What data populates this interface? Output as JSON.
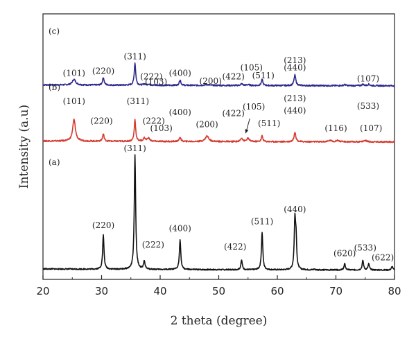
{
  "chart_data": {
    "type": "line",
    "xlabel": "2 theta (degree)",
    "ylabel": "Intensity (a.u)",
    "xlim": [
      20,
      80
    ],
    "x_ticks": [
      20,
      30,
      40,
      50,
      60,
      70,
      80
    ],
    "grid": false,
    "legend": "none",
    "series": [
      {
        "panel": "(c)",
        "color": "#2e2a8f",
        "baseline": 0.1,
        "peaks": [
          {
            "x": 25.3,
            "h": 0.2,
            "w": 0.35
          },
          {
            "x": 30.3,
            "h": 0.28,
            "w": 0.16
          },
          {
            "x": 35.7,
            "h": 0.8,
            "w": 0.15
          },
          {
            "x": 37.3,
            "h": 0.04,
            "w": 0.2
          },
          {
            "x": 38.0,
            "h": 0.04,
            "w": 0.25
          },
          {
            "x": 43.4,
            "h": 0.2,
            "w": 0.16
          },
          {
            "x": 48.0,
            "h": 0.03,
            "w": 0.45
          },
          {
            "x": 53.9,
            "h": 0.06,
            "w": 0.2
          },
          {
            "x": 55.0,
            "h": 0.03,
            "w": 0.3
          },
          {
            "x": 57.4,
            "h": 0.22,
            "w": 0.15
          },
          {
            "x": 63.0,
            "h": 0.38,
            "w": 0.18
          },
          {
            "x": 71.5,
            "h": 0.04,
            "w": 0.2
          },
          {
            "x": 74.6,
            "h": 0.05,
            "w": 0.2
          },
          {
            "x": 75.6,
            "h": 0.05,
            "w": 0.2
          }
        ],
        "labels": [
          {
            "text": "(101)",
            "x": 25.3,
            "y": 0.36
          },
          {
            "text": "(220)",
            "x": 30.3,
            "y": 0.44
          },
          {
            "text": "(311)",
            "x": 35.7,
            "y": 0.96
          },
          {
            "text": "(222)",
            "x": 38.5,
            "y": 0.24
          },
          {
            "text": "(103)",
            "x": 39.3,
            "y": 0.05
          },
          {
            "text": "(400)",
            "x": 43.4,
            "y": 0.36
          },
          {
            "text": "(200)",
            "x": 48.6,
            "y": 0.08
          },
          {
            "text": "(422)",
            "x": 52.5,
            "y": 0.24
          },
          {
            "text": "(105)",
            "x": 55.6,
            "y": 0.56
          },
          {
            "text": "(511)",
            "x": 57.6,
            "y": 0.28
          },
          {
            "text": "(213)",
            "x": 63.0,
            "y": 0.82
          },
          {
            "text": "(440)",
            "x": 63.0,
            "y": 0.56
          },
          {
            "text": "(107)",
            "x": 75.5,
            "y": 0.16
          }
        ]
      },
      {
        "panel": "(b)",
        "color": "#d43a2f",
        "baseline": 0.1,
        "peaks": [
          {
            "x": 25.3,
            "h": 0.78,
            "w": 0.28
          },
          {
            "x": 30.3,
            "h": 0.26,
            "w": 0.16
          },
          {
            "x": 35.7,
            "h": 0.78,
            "w": 0.15
          },
          {
            "x": 37.3,
            "h": 0.12,
            "w": 0.2
          },
          {
            "x": 38.0,
            "h": 0.12,
            "w": 0.25
          },
          {
            "x": 43.4,
            "h": 0.16,
            "w": 0.16
          },
          {
            "x": 48.0,
            "h": 0.2,
            "w": 0.35
          },
          {
            "x": 53.9,
            "h": 0.13,
            "w": 0.2
          },
          {
            "x": 55.0,
            "h": 0.12,
            "w": 0.25
          },
          {
            "x": 57.4,
            "h": 0.21,
            "w": 0.15
          },
          {
            "x": 63.0,
            "h": 0.35,
            "w": 0.18
          },
          {
            "x": 69.0,
            "h": 0.05,
            "w": 0.3
          },
          {
            "x": 70.3,
            "h": 0.05,
            "w": 0.3
          },
          {
            "x": 75.0,
            "h": 0.05,
            "w": 0.3
          }
        ],
        "labels": [
          {
            "text": "(101)",
            "x": 25.3,
            "y": 1.38
          },
          {
            "text": "(220)",
            "x": 30.0,
            "y": 0.66
          },
          {
            "text": "(311)",
            "x": 36.2,
            "y": 1.38
          },
          {
            "text": "(222)",
            "x": 38.9,
            "y": 0.66
          },
          {
            "text": "(103)",
            "x": 40.2,
            "y": 0.4
          },
          {
            "text": "(400)",
            "x": 43.4,
            "y": 0.98
          },
          {
            "text": "(200)",
            "x": 48.0,
            "y": 0.54
          },
          {
            "text": "(422)",
            "x": 52.5,
            "y": 0.94
          },
          {
            "text": "(105)",
            "x": 56.0,
            "y": 1.18
          },
          {
            "text": "(511)",
            "x": 58.6,
            "y": 0.58
          },
          {
            "text": "(213)",
            "x": 63.0,
            "y": 1.48
          },
          {
            "text": "(440)",
            "x": 63.0,
            "y": 1.04
          },
          {
            "text": "(533)",
            "x": 75.5,
            "y": 1.2
          },
          {
            "text": "(116)",
            "x": 70.0,
            "y": 0.4
          },
          {
            "text": "(107)",
            "x": 76.0,
            "y": 0.4
          }
        ],
        "arrow": {
          "from": [
            55.3,
            0.85
          ],
          "to": [
            54.6,
            0.32
          ]
        }
      },
      {
        "panel": "(a)",
        "color": "#111111",
        "baseline": 0.15,
        "peaks": [
          {
            "x": 30.3,
            "h": 1.4,
            "w": 0.14
          },
          {
            "x": 35.7,
            "h": 4.7,
            "w": 0.14
          },
          {
            "x": 37.3,
            "h": 0.35,
            "w": 0.14
          },
          {
            "x": 43.4,
            "h": 1.25,
            "w": 0.14
          },
          {
            "x": 53.9,
            "h": 0.4,
            "w": 0.14
          },
          {
            "x": 57.4,
            "h": 1.55,
            "w": 0.14
          },
          {
            "x": 63.0,
            "h": 2.05,
            "w": 0.14
          },
          {
            "x": 63.2,
            "h": 1.1,
            "w": 0.12
          },
          {
            "x": 66.3,
            "h": 0.03,
            "w": 0.15
          },
          {
            "x": 71.5,
            "h": 0.25,
            "w": 0.14
          },
          {
            "x": 74.6,
            "h": 0.4,
            "w": 0.14
          },
          {
            "x": 75.6,
            "h": 0.25,
            "w": 0.14
          },
          {
            "x": 79.6,
            "h": 0.15,
            "w": 0.14
          }
        ],
        "labels": [
          {
            "text": "(220)",
            "x": 30.3,
            "y": 1.75
          },
          {
            "text": "(311)",
            "x": 35.7,
            "y": 4.92
          },
          {
            "text": "(222)",
            "x": 38.8,
            "y": 0.95
          },
          {
            "text": "(400)",
            "x": 43.4,
            "y": 1.62
          },
          {
            "text": "(422)",
            "x": 52.8,
            "y": 0.86
          },
          {
            "text": "(511)",
            "x": 57.4,
            "y": 1.9
          },
          {
            "text": "(440)",
            "x": 63.0,
            "y": 2.4
          },
          {
            "text": "(620)",
            "x": 71.5,
            "y": 0.58
          },
          {
            "text": "(533)",
            "x": 75.0,
            "y": 0.82
          },
          {
            "text": "(622)",
            "x": 78.0,
            "y": 0.42
          }
        ]
      }
    ]
  }
}
